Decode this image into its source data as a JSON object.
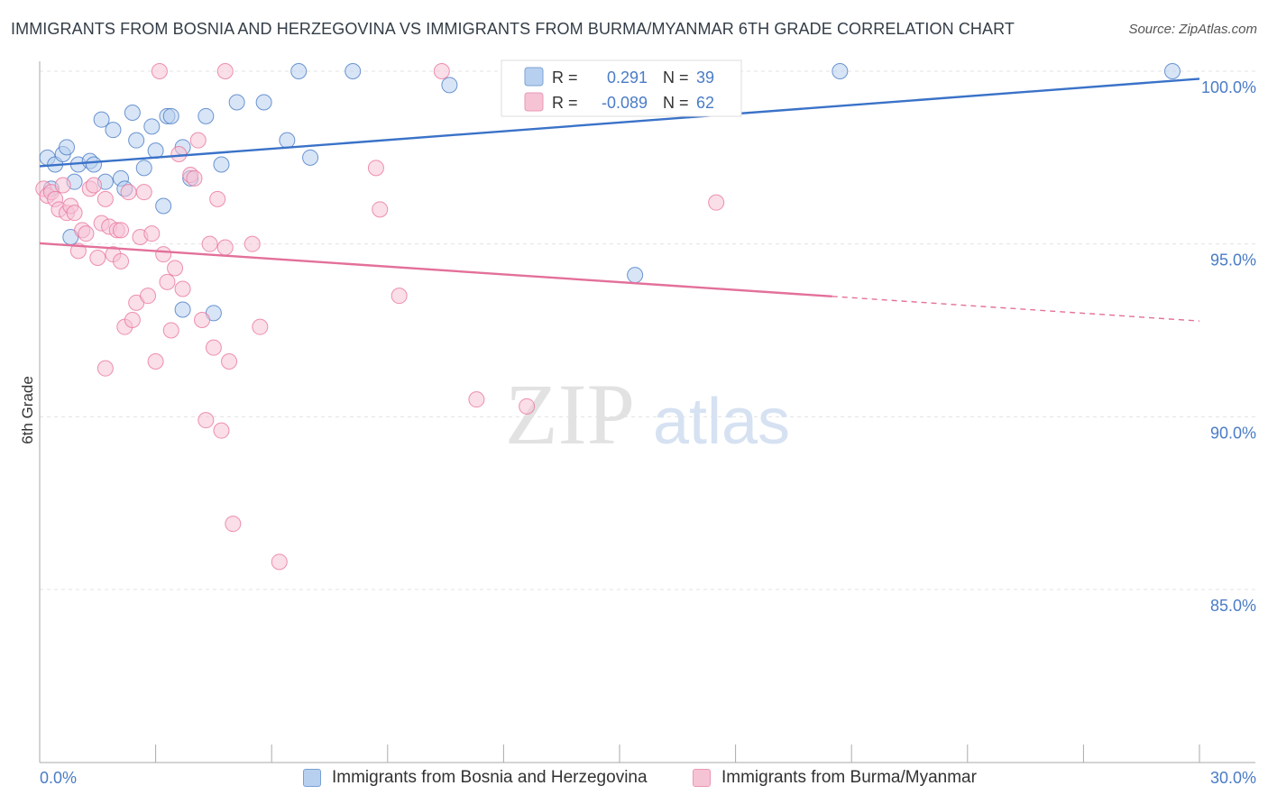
{
  "title": "IMMIGRANTS FROM BOSNIA AND HERZEGOVINA VS IMMIGRANTS FROM BURMA/MYANMAR 6TH GRADE CORRELATION CHART",
  "source": "Source: ZipAtlas.com",
  "watermark": {
    "zip": "ZIP",
    "atlas": "atlas"
  },
  "colors": {
    "blue": "#4a7cc6",
    "blue_fill": "#b8d0ef",
    "blue_line": "#3a72c8",
    "pink": "#e8779e",
    "pink_fill": "#f6c3d5",
    "pink_line": "#e3709a",
    "grid": "#e3e3e3"
  },
  "legend": {
    "rows": [
      {
        "r_label": "R =",
        "r_value": "0.291",
        "n_label": "N =",
        "n_value": "39"
      },
      {
        "r_label": "R =",
        "r_value": "-0.089",
        "n_label": "N =",
        "n_value": "62"
      }
    ]
  },
  "bottom_legend": {
    "items": [
      {
        "label": "Immigrants from Bosnia and Herzegovina"
      },
      {
        "label": "Immigrants from Burma/Myanmar"
      }
    ]
  },
  "chart_data": {
    "type": "scatter",
    "title": "IMMIGRANTS FROM BOSNIA AND HERZEGOVINA VS IMMIGRANTS FROM BURMA/MYANMAR 6TH GRADE CORRELATION CHART",
    "xlabel": "",
    "ylabel": "6th Grade",
    "xlim": [
      0,
      30
    ],
    "ylim": [
      80.5,
      100.8
    ],
    "x_tick_labels": [
      "0.0%",
      "30.0%"
    ],
    "y_ticks": [
      100,
      95,
      90,
      85
    ],
    "y_tick_labels": [
      "100.0%",
      "95.0%",
      "90.0%",
      "85.0%"
    ],
    "grid": true,
    "series": [
      {
        "name": "Immigrants from Bosnia and Herzegovina",
        "color": "#4a7cc6",
        "trend": {
          "x": [
            0,
            30
          ],
          "y": [
            97.25,
            99.78
          ],
          "dashed_from": null
        },
        "points": [
          [
            0.2,
            97.5
          ],
          [
            0.4,
            97.3
          ],
          [
            0.6,
            97.6
          ],
          [
            0.7,
            97.8
          ],
          [
            1.0,
            97.3
          ],
          [
            1.3,
            97.4
          ],
          [
            1.4,
            97.3
          ],
          [
            0.9,
            96.8
          ],
          [
            1.7,
            96.8
          ],
          [
            0.3,
            96.6
          ],
          [
            0.8,
            95.2
          ],
          [
            1.6,
            98.6
          ],
          [
            1.9,
            98.3
          ],
          [
            2.1,
            96.9
          ],
          [
            2.2,
            96.6
          ],
          [
            2.4,
            98.8
          ],
          [
            2.5,
            98.0
          ],
          [
            2.7,
            97.2
          ],
          [
            2.9,
            98.4
          ],
          [
            3.0,
            97.7
          ],
          [
            3.2,
            96.1
          ],
          [
            3.3,
            98.7
          ],
          [
            3.4,
            98.7
          ],
          [
            3.7,
            97.8
          ],
          [
            3.9,
            96.9
          ],
          [
            4.3,
            98.7
          ],
          [
            4.7,
            97.3
          ],
          [
            5.1,
            99.1
          ],
          [
            5.8,
            99.1
          ],
          [
            6.4,
            98.0
          ],
          [
            6.7,
            100.0
          ],
          [
            7.0,
            97.5
          ],
          [
            8.1,
            100.0
          ],
          [
            10.6,
            99.6
          ],
          [
            3.7,
            93.1
          ],
          [
            4.5,
            93.0
          ],
          [
            15.4,
            94.1
          ],
          [
            20.7,
            100.0
          ],
          [
            29.3,
            100.0
          ]
        ]
      },
      {
        "name": "Immigrants from Burma/Myanmar",
        "color": "#e8779e",
        "trend": {
          "x": [
            0,
            30
          ],
          "y": [
            95.02,
            92.77
          ],
          "dashed_from": 20.5
        },
        "points": [
          [
            0.1,
            96.6
          ],
          [
            0.2,
            96.4
          ],
          [
            0.3,
            96.5
          ],
          [
            0.4,
            96.3
          ],
          [
            0.5,
            96.0
          ],
          [
            0.6,
            96.7
          ],
          [
            0.7,
            95.9
          ],
          [
            0.8,
            96.1
          ],
          [
            0.9,
            95.9
          ],
          [
            1.1,
            95.4
          ],
          [
            1.2,
            95.3
          ],
          [
            1.3,
            96.6
          ],
          [
            1.4,
            96.7
          ],
          [
            1.5,
            94.6
          ],
          [
            1.6,
            95.6
          ],
          [
            1.7,
            96.3
          ],
          [
            1.8,
            95.5
          ],
          [
            1.9,
            94.7
          ],
          [
            2.0,
            95.4
          ],
          [
            2.1,
            94.5
          ],
          [
            2.2,
            92.6
          ],
          [
            2.3,
            96.5
          ],
          [
            2.4,
            92.8
          ],
          [
            2.5,
            93.3
          ],
          [
            2.6,
            95.2
          ],
          [
            2.7,
            96.5
          ],
          [
            2.8,
            93.5
          ],
          [
            2.9,
            95.3
          ],
          [
            3.0,
            91.6
          ],
          [
            3.2,
            94.7
          ],
          [
            3.3,
            93.9
          ],
          [
            3.4,
            92.5
          ],
          [
            3.5,
            94.3
          ],
          [
            3.6,
            97.6
          ],
          [
            3.7,
            93.7
          ],
          [
            3.9,
            97.0
          ],
          [
            4.0,
            96.9
          ],
          [
            4.1,
            98.0
          ],
          [
            4.2,
            92.8
          ],
          [
            4.3,
            89.9
          ],
          [
            4.4,
            95.0
          ],
          [
            4.5,
            92.0
          ],
          [
            4.6,
            96.3
          ],
          [
            4.7,
            89.6
          ],
          [
            4.8,
            94.9
          ],
          [
            4.9,
            91.6
          ],
          [
            5.0,
            86.9
          ],
          [
            5.5,
            95.0
          ],
          [
            5.7,
            92.6
          ],
          [
            6.2,
            85.8
          ],
          [
            3.1,
            100.0
          ],
          [
            4.8,
            100.0
          ],
          [
            8.7,
            97.2
          ],
          [
            8.8,
            96.0
          ],
          [
            9.3,
            93.5
          ],
          [
            10.4,
            100.0
          ],
          [
            11.3,
            90.5
          ],
          [
            12.6,
            90.3
          ],
          [
            17.5,
            96.2
          ],
          [
            1.7,
            91.4
          ],
          [
            1.0,
            94.8
          ],
          [
            2.1,
            95.4
          ]
        ]
      }
    ]
  }
}
